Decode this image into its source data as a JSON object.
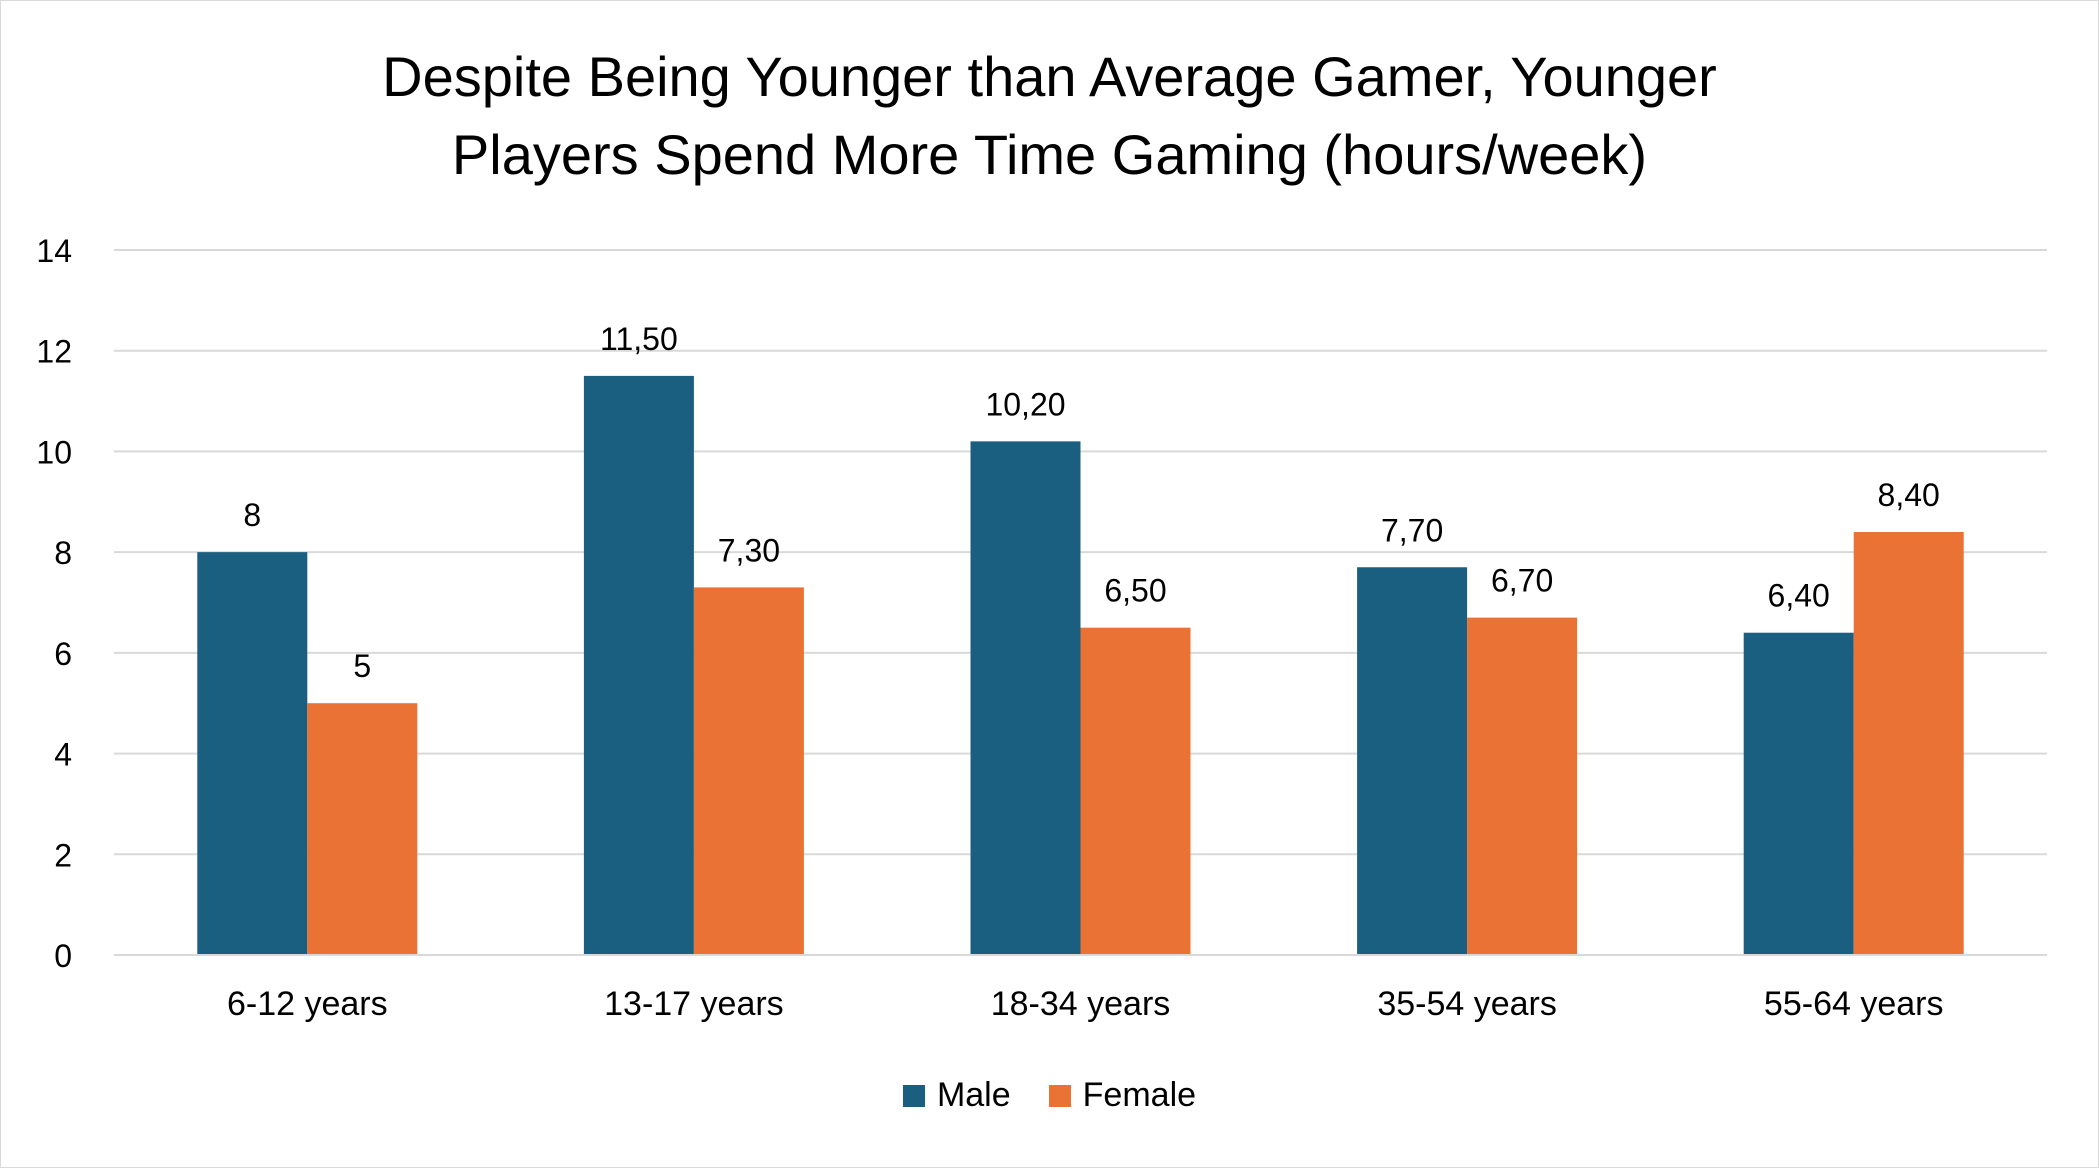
{
  "chart_data": {
    "type": "bar",
    "title_lines": [
      "Despite Being Younger than Average Gamer, Younger",
      "Players Spend More Time Gaming (hours/week)"
    ],
    "categories": [
      "6-12 years",
      "13-17 years",
      "18-34 years",
      "35-54 years",
      "55-64 years"
    ],
    "series": [
      {
        "name": "Male",
        "color": "#1a5f80",
        "values": [
          8,
          11.5,
          10.2,
          7.7,
          6.4
        ],
        "labels": [
          "8",
          "11,50",
          "10,20",
          "7,70",
          "6,40"
        ]
      },
      {
        "name": "Female",
        "color": "#e97234",
        "values": [
          5,
          7.3,
          6.5,
          6.7,
          8.4
        ],
        "labels": [
          "5",
          "7,30",
          "6,50",
          "6,70",
          "8,40"
        ]
      }
    ],
    "ylim": [
      0,
      14
    ],
    "yticks": [
      0,
      2,
      4,
      6,
      8,
      10,
      12,
      14
    ],
    "grid": true,
    "legend": "bottom",
    "xlabel": "",
    "ylabel": ""
  }
}
